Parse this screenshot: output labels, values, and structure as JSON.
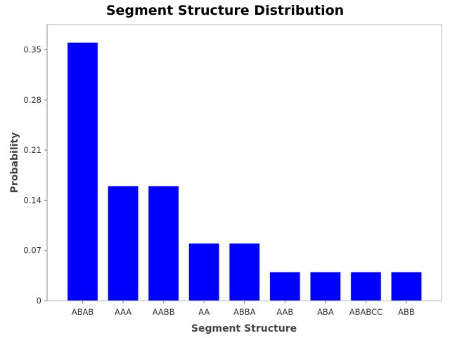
{
  "chart_data": {
    "type": "bar",
    "title": "Segment Structure Distribution",
    "xlabel": "Segment Structure",
    "ylabel": "Probability",
    "categories": [
      "ABAB",
      "AAA",
      "AABB",
      "AA",
      "ABBA",
      "AAB",
      "ABA",
      "ABABCC",
      "ABB"
    ],
    "values": [
      0.36,
      0.16,
      0.16,
      0.08,
      0.08,
      0.04,
      0.04,
      0.04,
      0.04
    ],
    "ylim": [
      0,
      0.385
    ],
    "yticks": [
      0,
      0.07,
      0.14,
      0.21,
      0.28,
      0.35
    ],
    "ytick_labels": [
      "0",
      "0.07",
      "0.14",
      "0.21",
      "0.28",
      "0.35"
    ],
    "bar_color": "#0000ff",
    "grid": false,
    "legend": "none"
  }
}
